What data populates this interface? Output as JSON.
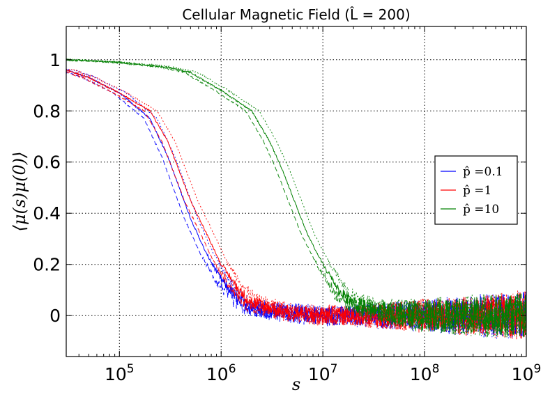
{
  "chart_data": {
    "type": "line",
    "title": "Cellular Magnetic Field (L̂ = 200)",
    "xlabel": "s",
    "ylabel": "⟨μ(s)μ(0)⟩",
    "xscale": "log",
    "xlim": [
      30000,
      1000000000
    ],
    "ylim": [
      -0.16,
      1.13
    ],
    "grid": true,
    "legend_position": "center-right",
    "x_ticks": [
      {
        "value": 100000,
        "base": "10",
        "exp": "5"
      },
      {
        "value": 1000000,
        "base": "10",
        "exp": "6"
      },
      {
        "value": 10000000,
        "base": "10",
        "exp": "7"
      },
      {
        "value": 100000000,
        "base": "10",
        "exp": "8"
      },
      {
        "value": 1000000000,
        "base": "10",
        "exp": "9"
      }
    ],
    "y_ticks": [
      {
        "value": 0,
        "label": "0"
      },
      {
        "value": 0.2,
        "label": "0.2"
      },
      {
        "value": 0.4,
        "label": "0.4"
      },
      {
        "value": 0.6,
        "label": "0.6"
      },
      {
        "value": 0.8,
        "label": "0.8"
      },
      {
        "value": 1,
        "label": "1"
      }
    ],
    "series": [
      {
        "name": "p̂ = 0.1",
        "legend_label": "p̂ =0.1",
        "color": "#0000ff",
        "x": [
          30000,
          50000,
          100000,
          200000,
          300000,
          500000,
          700000,
          1000000,
          1500000,
          2000000,
          3000000,
          5000000,
          10000000,
          20000000,
          50000000,
          100000000,
          300000000,
          1000000000
        ],
        "values": [
          0.96,
          0.93,
          0.87,
          0.77,
          0.62,
          0.38,
          0.25,
          0.14,
          0.06,
          0.03,
          0.02,
          0.01,
          0.0,
          0.0,
          0.0,
          0.0,
          0.0,
          0.0
        ]
      },
      {
        "name": "p̂ = 1",
        "legend_label": "p̂ =1",
        "color": "#ff0000",
        "x": [
          30000,
          50000,
          100000,
          200000,
          300000,
          500000,
          700000,
          1000000,
          1500000,
          2000000,
          3000000,
          5000000,
          10000000,
          20000000,
          50000000,
          100000000,
          300000000,
          1000000000
        ],
        "values": [
          0.96,
          0.93,
          0.87,
          0.8,
          0.68,
          0.45,
          0.33,
          0.2,
          0.1,
          0.05,
          0.03,
          0.01,
          0.0,
          0.0,
          0.0,
          0.0,
          0.0,
          0.0
        ]
      },
      {
        "name": "p̂ = 10",
        "legend_label": "p̂ =10",
        "color": "#008000",
        "x": [
          30000,
          100000,
          300000,
          500000,
          1000000,
          2000000,
          3000000,
          4000000,
          5000000,
          7000000,
          10000000,
          15000000,
          20000000,
          30000000,
          50000000,
          100000000,
          300000000,
          1000000000
        ],
        "values": [
          1.0,
          0.99,
          0.97,
          0.95,
          0.88,
          0.8,
          0.68,
          0.57,
          0.47,
          0.32,
          0.2,
          0.09,
          0.05,
          0.02,
          0.01,
          0.0,
          0.0,
          0.0
        ]
      }
    ]
  }
}
